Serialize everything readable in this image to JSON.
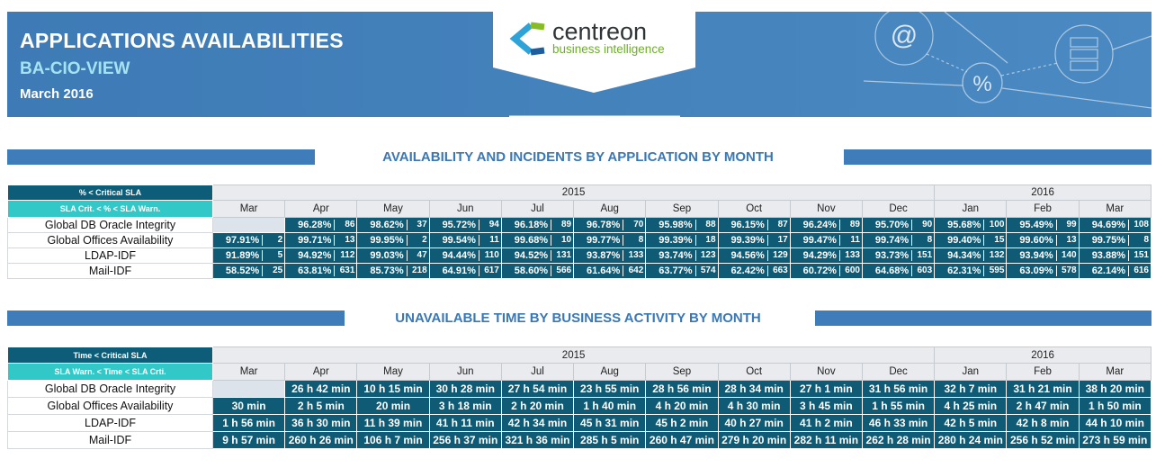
{
  "header": {
    "title": "APPLICATIONS AVAILABILITIES",
    "subtitle": "BA-CIO-VIEW",
    "period": "March 2016",
    "logo": {
      "name": "centreon",
      "tagline": "business intelligence"
    },
    "decor": [
      "@",
      "%"
    ]
  },
  "sections": [
    {
      "title": "AVAILABILITY AND INCIDENTS BY APPLICATION BY MONTH",
      "legend": [
        "% < Critical SLA",
        "SLA Crit. < % < SLA Warn."
      ],
      "years": [
        {
          "label": "2015",
          "months": [
            "Mar",
            "Apr",
            "May",
            "Jun",
            "Jul",
            "Aug",
            "Sep",
            "Oct",
            "Nov",
            "Dec"
          ]
        },
        {
          "label": "2016",
          "months": [
            "Jan",
            "Feb",
            "Mar"
          ]
        }
      ],
      "rows": [
        {
          "label": "Global DB Oracle Integrity",
          "cells": [
            null,
            {
              "availability": "96.28%",
              "incidents": 86
            },
            {
              "availability": "98.62%",
              "incidents": 37
            },
            {
              "availability": "95.72%",
              "incidents": 94
            },
            {
              "availability": "96.18%",
              "incidents": 89
            },
            {
              "availability": "96.78%",
              "incidents": 70
            },
            {
              "availability": "95.98%",
              "incidents": 88
            },
            {
              "availability": "96.15%",
              "incidents": 87
            },
            {
              "availability": "96.24%",
              "incidents": 89
            },
            {
              "availability": "95.70%",
              "incidents": 90
            },
            {
              "availability": "95.68%",
              "incidents": 100
            },
            {
              "availability": "95.49%",
              "incidents": 99
            },
            {
              "availability": "94.69%",
              "incidents": 108
            }
          ]
        },
        {
          "label": "Global Offices Availability",
          "cells": [
            {
              "availability": "97.91%",
              "incidents": 2
            },
            {
              "availability": "99.71%",
              "incidents": 13
            },
            {
              "availability": "99.95%",
              "incidents": 2
            },
            {
              "availability": "99.54%",
              "incidents": 11
            },
            {
              "availability": "99.68%",
              "incidents": 10
            },
            {
              "availability": "99.77%",
              "incidents": 8
            },
            {
              "availability": "99.39%",
              "incidents": 18
            },
            {
              "availability": "99.39%",
              "incidents": 17
            },
            {
              "availability": "99.47%",
              "incidents": 11
            },
            {
              "availability": "99.74%",
              "incidents": 8
            },
            {
              "availability": "99.40%",
              "incidents": 15
            },
            {
              "availability": "99.60%",
              "incidents": 13
            },
            {
              "availability": "99.75%",
              "incidents": 8
            }
          ]
        },
        {
          "label": "LDAP-IDF",
          "cells": [
            {
              "availability": "91.89%",
              "incidents": 5
            },
            {
              "availability": "94.92%",
              "incidents": 112
            },
            {
              "availability": "99.03%",
              "incidents": 47
            },
            {
              "availability": "94.44%",
              "incidents": 110
            },
            {
              "availability": "94.52%",
              "incidents": 131
            },
            {
              "availability": "93.87%",
              "incidents": 133
            },
            {
              "availability": "93.74%",
              "incidents": 123
            },
            {
              "availability": "94.56%",
              "incidents": 129
            },
            {
              "availability": "94.29%",
              "incidents": 133
            },
            {
              "availability": "93.73%",
              "incidents": 151
            },
            {
              "availability": "94.34%",
              "incidents": 132
            },
            {
              "availability": "93.94%",
              "incidents": 140
            },
            {
              "availability": "93.88%",
              "incidents": 151
            }
          ]
        },
        {
          "label": "Mail-IDF",
          "cells": [
            {
              "availability": "58.52%",
              "incidents": 25
            },
            {
              "availability": "63.81%",
              "incidents": 631
            },
            {
              "availability": "85.73%",
              "incidents": 218
            },
            {
              "availability": "64.91%",
              "incidents": 617
            },
            {
              "availability": "58.60%",
              "incidents": 566
            },
            {
              "availability": "61.64%",
              "incidents": 642
            },
            {
              "availability": "63.77%",
              "incidents": 574
            },
            {
              "availability": "62.42%",
              "incidents": 663
            },
            {
              "availability": "60.72%",
              "incidents": 600
            },
            {
              "availability": "64.68%",
              "incidents": 603
            },
            {
              "availability": "62.31%",
              "incidents": 595
            },
            {
              "availability": "63.09%",
              "incidents": 578
            },
            {
              "availability": "62.14%",
              "incidents": 616
            }
          ]
        }
      ]
    },
    {
      "title": "UNAVAILABLE TIME BY BUSINESS ACTIVITY BY MONTH",
      "legend": [
        "Time < Critical SLA",
        "SLA Warn. < Time < SLA Crti."
      ],
      "years": [
        {
          "label": "2015",
          "months": [
            "Mar",
            "Apr",
            "May",
            "Jun",
            "Jul",
            "Aug",
            "Sep",
            "Oct",
            "Nov",
            "Dec"
          ]
        },
        {
          "label": "2016",
          "months": [
            "Jan",
            "Feb",
            "Mar"
          ]
        }
      ],
      "rows": [
        {
          "label": "Global DB Oracle Integrity",
          "cells": [
            null,
            "26 h 42 min",
            "10 h 15 min",
            "30 h 28 min",
            "27 h 54 min",
            "23 h 55 min",
            "28 h 56 min",
            "28 h 34 min",
            "27 h 1 min",
            "31 h 56 min",
            "32 h 7 min",
            "31 h 21 min",
            "38 h 20 min"
          ]
        },
        {
          "label": "Global Offices Availability",
          "cells": [
            "30 min",
            "2 h 5 min",
            "20 min",
            "3 h 18 min",
            "2 h 20 min",
            "1 h 40 min",
            "4 h 20 min",
            "4 h 30 min",
            "3 h 45 min",
            "1 h 55 min",
            "4 h 25 min",
            "2 h 47 min",
            "1 h 50 min"
          ]
        },
        {
          "label": "LDAP-IDF",
          "cells": [
            "1 h 56 min",
            "36 h 30 min",
            "11 h 39 min",
            "41 h 11 min",
            "42 h 34 min",
            "45 h 31 min",
            "45 h 2 min",
            "40 h 27 min",
            "41 h 2 min",
            "46 h 33 min",
            "42 h 5 min",
            "42 h 8 min",
            "44 h 10 min"
          ]
        },
        {
          "label": "Mail-IDF",
          "cells": [
            "9 h 57 min",
            "260 h 26 min",
            "106 h 7 min",
            "256 h 37 min",
            "321 h 36 min",
            "285 h 5 min",
            "260 h 47 min",
            "279 h 20 min",
            "282 h 11 min",
            "262 h 28 min",
            "280 h 24 min",
            "256 h 52 min",
            "273 h 59 min"
          ]
        }
      ]
    }
  ]
}
